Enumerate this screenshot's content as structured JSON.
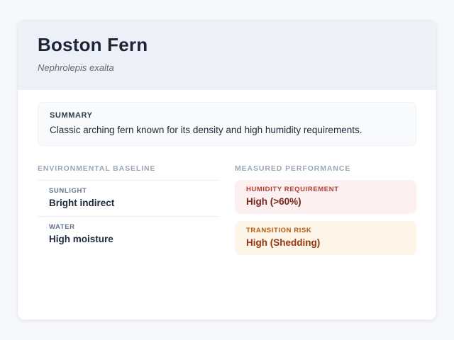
{
  "card": {
    "header": {
      "title": "Boston Fern",
      "subtitle": "Nephrolepis exalta"
    },
    "summary": {
      "label": "SUMMARY",
      "text": "Classic arching fern known for its density and high humidity requirements."
    },
    "columns": {
      "left": {
        "heading": "ENVIRONMENTAL BASELINE",
        "items": [
          {
            "label": "SUNLIGHT",
            "value": "Bright indirect"
          },
          {
            "label": "WATER",
            "value": "High moisture"
          }
        ]
      },
      "right": {
        "heading": "MEASURED PERFORMANCE",
        "items": [
          {
            "label": "HUMIDITY REQUIREMENT",
            "value": "High (>60%)",
            "bg": "#fdf0f0",
            "label_color": "#bb3a2e",
            "value_color": "#7b241c"
          },
          {
            "label": "TRANSITION RISK",
            "value": "High (Shedding)",
            "bg": "#fdf5e8",
            "label_color": "#c2570c",
            "value_color": "#9a3412"
          }
        ]
      }
    }
  },
  "colors": {
    "page_background": "#f6f8fb",
    "card_background": "#ffffff",
    "header_band": "#edf1f7",
    "summary_background": "#f8fafc"
  }
}
